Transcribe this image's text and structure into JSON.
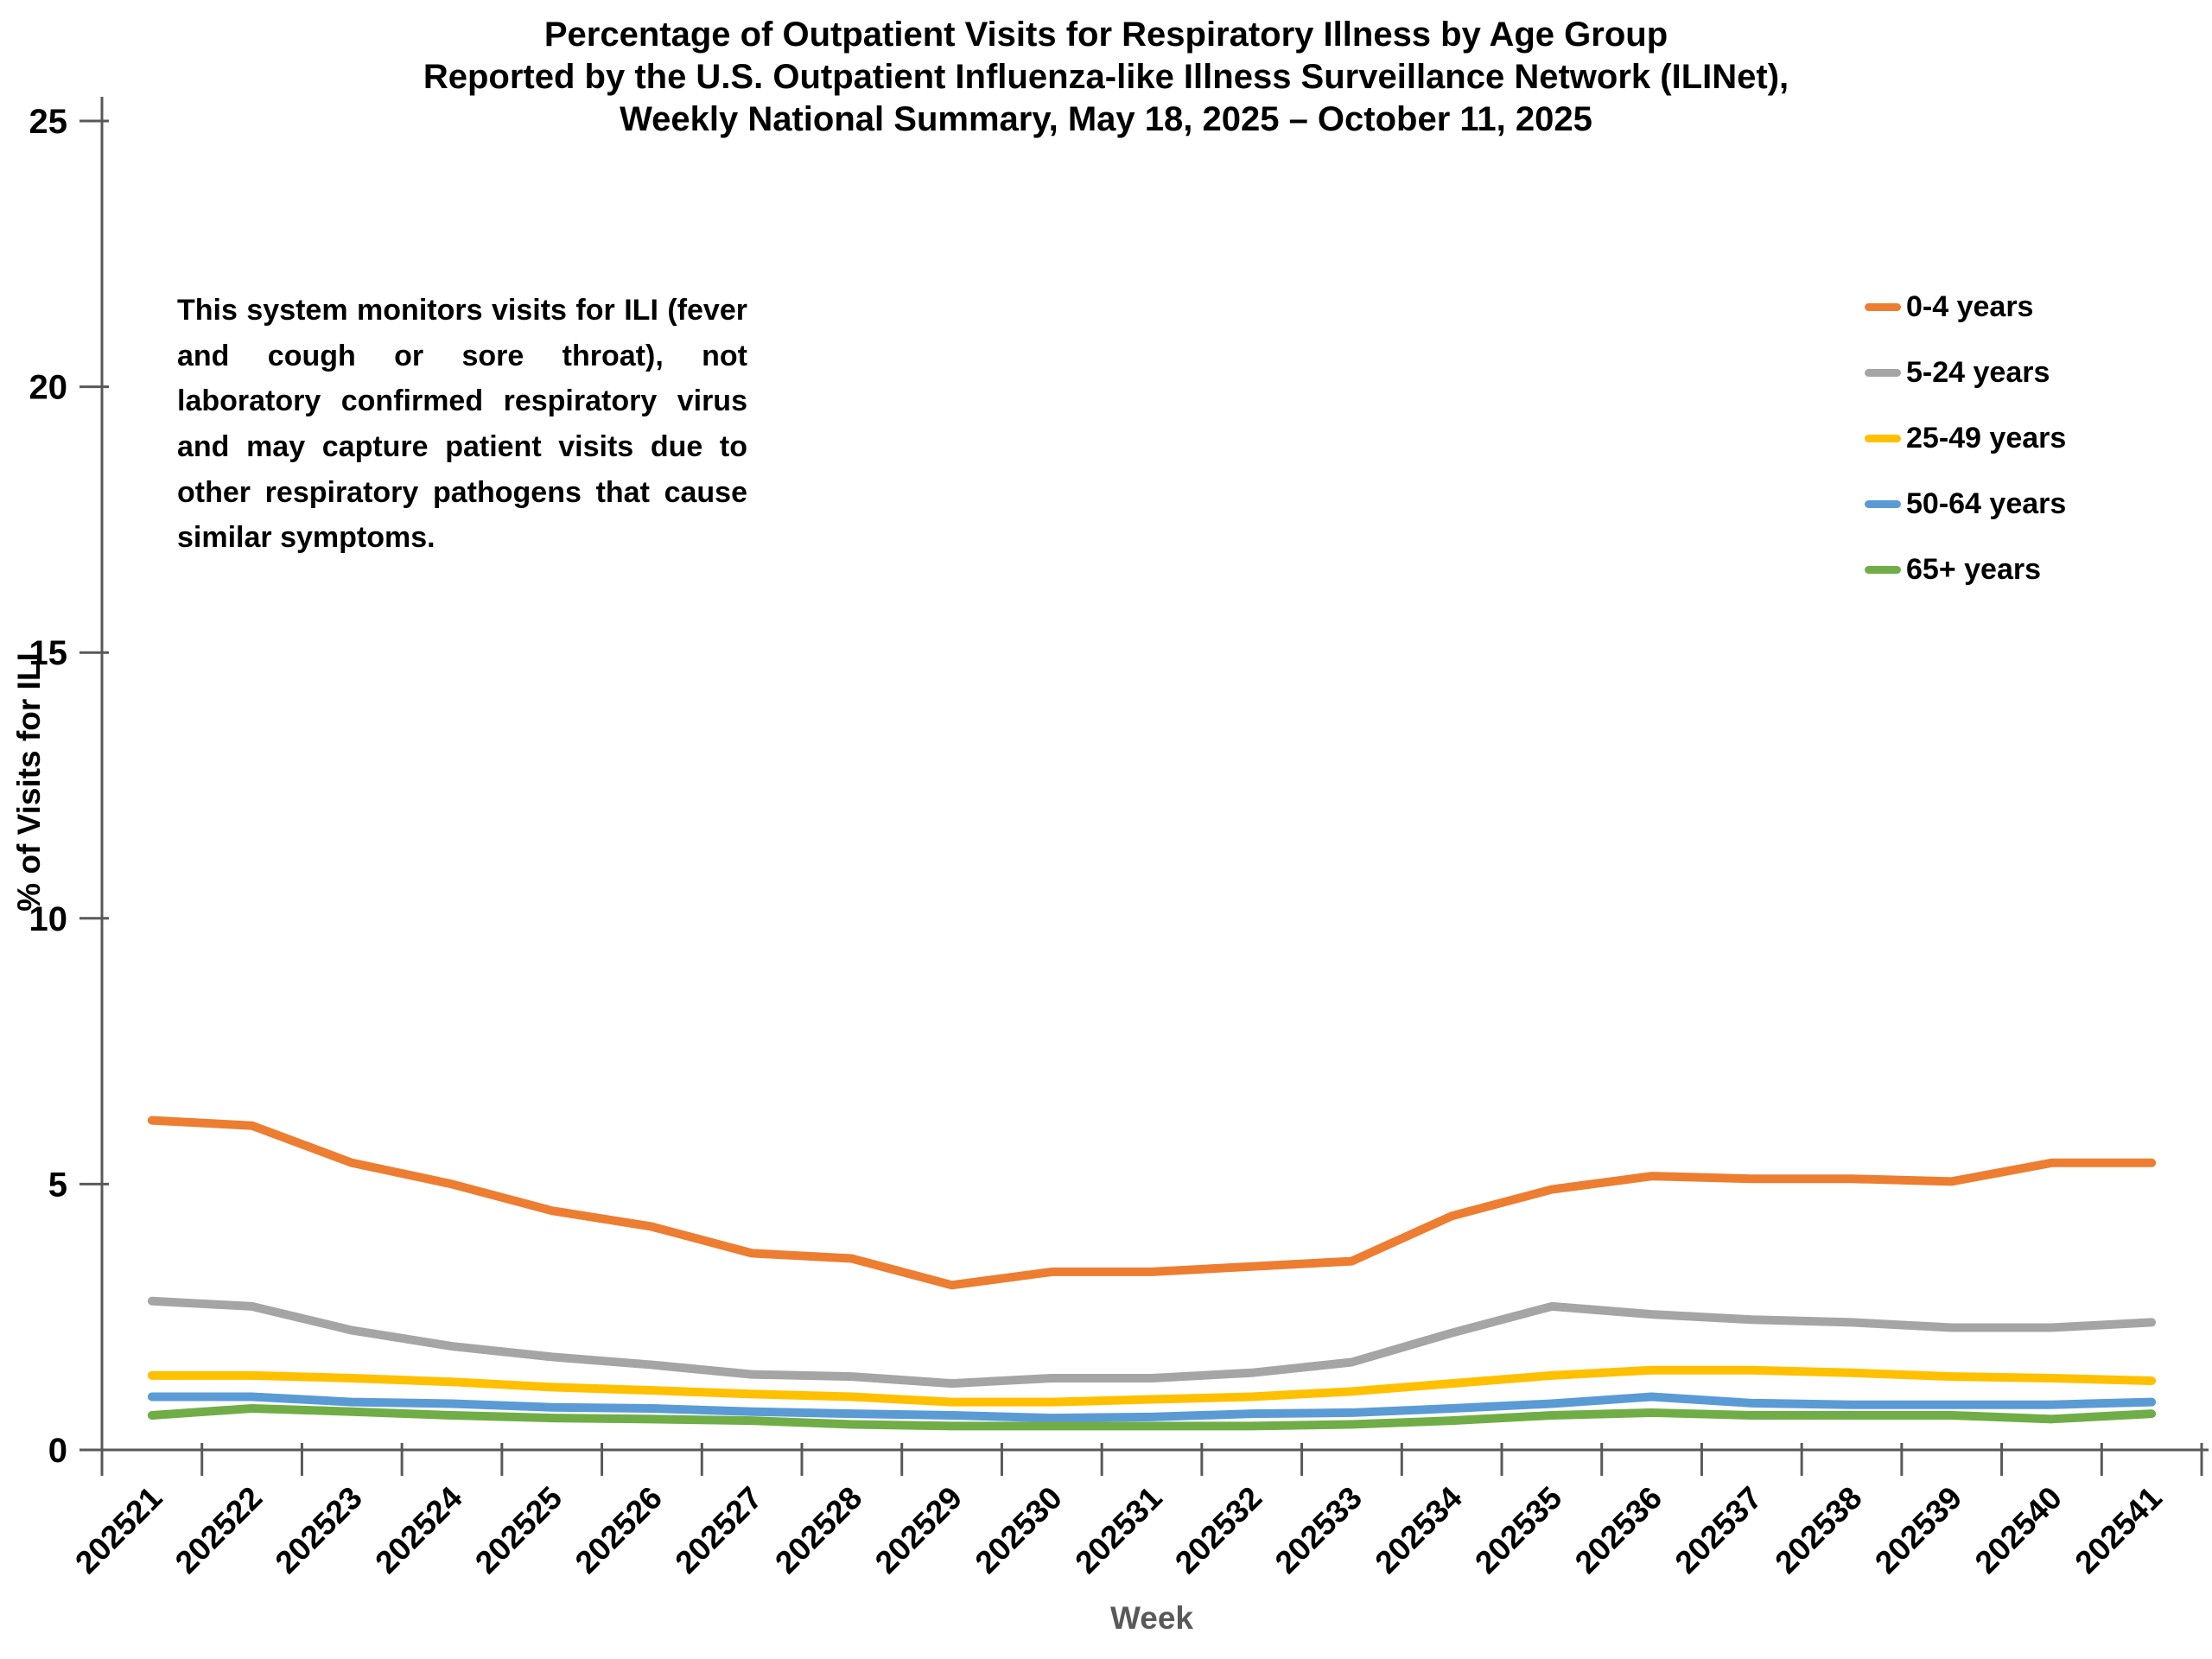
{
  "header": {
    "title_line1": "Percentage of Outpatient Visits for Respiratory Illness by Age Group",
    "title_line2": "Reported by the U.S. Outpatient Influenza-like Illness Surveillance Network (ILINet),",
    "title_line3": "Weekly National Summary, May 18, 2025 – October 11, 2025"
  },
  "annotation_text": "This system monitors visits for ILI (fever and cough or sore throat), not laboratory confirmed respiratory virus and may capture patient visits due to other respiratory pathogens that cause similar symptoms.",
  "chart_data": {
    "type": "line",
    "title": "Percentage of Outpatient Visits for Respiratory Illness by Age Group Reported by the U.S. Outpatient Influenza-like Illness Surveillance Network (ILINet), Weekly National Summary, May 18, 2025 – October 11, 2025",
    "xlabel": "Week",
    "ylabel": "% of Visits for ILI",
    "ylim": [
      0,
      25
    ],
    "yticks": [
      0,
      5,
      10,
      15,
      20,
      25
    ],
    "grid": false,
    "legend_position": "right",
    "categories": [
      "202521",
      "202522",
      "202523",
      "202524",
      "202525",
      "202526",
      "202527",
      "202528",
      "202529",
      "202530",
      "202531",
      "202532",
      "202533",
      "202534",
      "202535",
      "202536",
      "202537",
      "202538",
      "202539",
      "202540",
      "202541"
    ],
    "series": [
      {
        "name": "0-4 years",
        "color": "#ED7D31",
        "values": [
          6.2,
          6.1,
          5.4,
          5.0,
          4.5,
          4.2,
          3.7,
          3.6,
          3.1,
          3.35,
          3.35,
          3.45,
          3.55,
          4.4,
          4.9,
          5.15,
          5.1,
          5.1,
          5.05,
          5.4,
          5.4
        ]
      },
      {
        "name": "5-24 years",
        "color": "#A5A5A5",
        "values": [
          2.8,
          2.7,
          2.25,
          1.95,
          1.75,
          1.6,
          1.42,
          1.38,
          1.25,
          1.35,
          1.35,
          1.45,
          1.65,
          2.2,
          2.7,
          2.55,
          2.45,
          2.4,
          2.3,
          2.3,
          2.4
        ]
      },
      {
        "name": "25-49 years",
        "color": "#FFC000",
        "values": [
          1.4,
          1.4,
          1.35,
          1.28,
          1.18,
          1.12,
          1.05,
          1.0,
          0.9,
          0.9,
          0.95,
          1.0,
          1.1,
          1.25,
          1.4,
          1.5,
          1.5,
          1.45,
          1.38,
          1.35,
          1.3
        ]
      },
      {
        "name": "50-64 years",
        "color": "#5B9BD5",
        "values": [
          1.0,
          1.0,
          0.9,
          0.87,
          0.8,
          0.78,
          0.72,
          0.68,
          0.65,
          0.6,
          0.62,
          0.68,
          0.7,
          0.78,
          0.87,
          1.0,
          0.88,
          0.85,
          0.85,
          0.85,
          0.9
        ]
      },
      {
        "name": "65+ years",
        "color": "#70AD47",
        "values": [
          0.65,
          0.78,
          0.72,
          0.65,
          0.6,
          0.58,
          0.55,
          0.48,
          0.45,
          0.45,
          0.45,
          0.45,
          0.48,
          0.55,
          0.65,
          0.7,
          0.65,
          0.65,
          0.65,
          0.58,
          0.68
        ]
      }
    ],
    "axis_color": "#595959",
    "line_width": 10
  }
}
